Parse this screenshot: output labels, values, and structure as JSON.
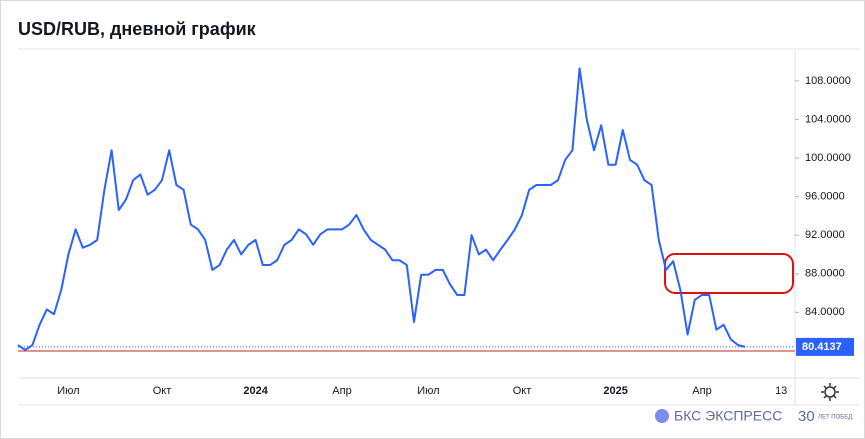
{
  "chart_data": {
    "type": "line",
    "title": "USD/RUB, дневной график",
    "categories": [
      null,
      null,
      null,
      null,
      null,
      null,
      null,
      "Июл",
      null,
      null,
      null,
      null,
      null,
      null,
      null,
      null,
      null,
      null,
      null,
      null,
      "Окт",
      null,
      null,
      null,
      null,
      null,
      null,
      null,
      null,
      null,
      null,
      null,
      null,
      "2024",
      null,
      null,
      null,
      null,
      null,
      null,
      null,
      null,
      null,
      null,
      null,
      "Апр",
      null,
      null,
      null,
      null,
      null,
      null,
      null,
      null,
      null,
      null,
      null,
      "Июл",
      null,
      null,
      null,
      null,
      null,
      null,
      null,
      null,
      null,
      null,
      null,
      null,
      "Окт",
      null,
      null,
      null,
      null,
      null,
      null,
      null,
      null,
      null,
      null,
      null,
      null,
      "2025",
      null,
      null,
      null,
      null,
      null,
      null,
      null,
      null,
      null,
      null,
      null,
      "Апр",
      null,
      null,
      null,
      null,
      null,
      null,
      null,
      null,
      null,
      null,
      "13"
    ],
    "values": [
      80.6,
      80.1,
      80.6,
      82.7,
      84.3,
      83.8,
      86.3,
      90.0,
      92.6,
      90.7,
      91.0,
      91.5,
      96.7,
      100.8,
      94.6,
      95.7,
      97.7,
      98.3,
      96.2,
      96.7,
      97.7,
      100.8,
      97.2,
      96.7,
      93.1,
      92.6,
      91.5,
      88.4,
      88.9,
      90.5,
      91.5,
      90.0,
      91.0,
      91.5,
      88.9,
      88.9,
      89.4,
      91.0,
      91.5,
      92.6,
      92.1,
      91.0,
      92.1,
      92.6,
      92.6,
      92.6,
      93.1,
      94.1,
      92.6,
      91.5,
      91.0,
      90.5,
      89.4,
      89.4,
      88.9,
      83.0,
      87.9,
      87.9,
      88.4,
      88.4,
      86.9,
      85.8,
      85.8,
      92.0,
      90.0,
      90.5,
      89.4,
      90.5,
      91.5,
      92.6,
      94.1,
      96.7,
      97.2,
      97.2,
      97.2,
      97.7,
      99.8,
      100.8,
      109.3,
      104.0,
      100.8,
      103.4,
      99.3,
      99.3,
      102.9,
      99.8,
      99.3,
      97.7,
      97.2,
      91.5,
      88.4,
      89.3,
      86.3,
      81.7,
      85.3,
      85.8,
      85.8,
      82.2,
      82.7,
      81.2,
      80.6,
      80.4137,
      null,
      null,
      null,
      null,
      null
    ],
    "color": "#2962ff",
    "ylim": [
      77.5,
      111.2
    ],
    "yticks": [
      {
        "value": 84,
        "label": "84.0000"
      },
      {
        "value": 88,
        "label": "88.0000"
      },
      {
        "value": 92,
        "label": "92.0000"
      },
      {
        "value": 96,
        "label": "96.0000"
      },
      {
        "value": 100,
        "label": "100.0000"
      },
      {
        "value": 104,
        "label": "104.0000"
      },
      {
        "value": 108,
        "label": "108.0000"
      }
    ],
    "brand": "БКС ЭКСПРЕСС",
    "badge": "30",
    "badge_caption": "ЛЕТ ПОБЕД"
  }
}
